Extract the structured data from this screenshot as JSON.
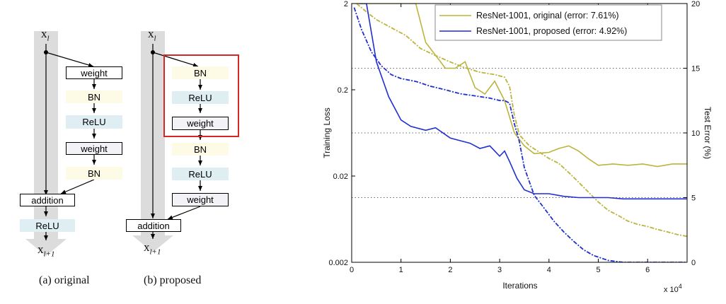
{
  "diagram": {
    "input_label": "x",
    "input_sub": "l",
    "output_label": "x",
    "output_sub": "l+1",
    "original": {
      "caption": "(a) original",
      "blocks": [
        "weight",
        "BN",
        "ReLU",
        "weight",
        "BN"
      ],
      "addition": "addition",
      "after": "ReLU"
    },
    "proposed": {
      "caption": "(b) proposed",
      "blocks": [
        "BN",
        "ReLU",
        "weight",
        "BN",
        "ReLU",
        "weight"
      ],
      "addition": "addition"
    },
    "colors": {
      "shortcut": "#dcdcdc",
      "bn": "#fdfae6",
      "relu": "#dfeef3",
      "highlight": "#d62728"
    }
  },
  "chart_data": {
    "type": "line",
    "x_label": "Iterations",
    "x_multiplier": "x 10",
    "x_multiplier_exp": "4",
    "x_ticks": [
      "0",
      "1",
      "2",
      "3",
      "4",
      "5",
      "6"
    ],
    "x_range": [
      0,
      6.8
    ],
    "y_left_label": "Training Loss",
    "y_left_scale": "log",
    "y_left_range": [
      0.002,
      2
    ],
    "y_left_ticks": [
      "2",
      "0.2",
      "0.02",
      "0.002"
    ],
    "y_right_label": "Test Error (%)",
    "y_right_range": [
      0,
      20
    ],
    "y_right_ticks": [
      "0",
      "5",
      "10",
      "15",
      "20"
    ],
    "grid": "dotted horizontal at 5, 10, 15 (%)",
    "legend_position": "top-right",
    "series": [
      {
        "name": "ResNet-1001, original (error: 7.61%)",
        "color": "#bcb43c",
        "test_error": {
          "x": [
            0.15,
            0.4,
            0.7,
            1.0,
            1.3,
            1.5,
            1.7,
            1.9,
            2.1,
            2.3,
            2.5,
            2.7,
            2.9,
            3.1,
            3.3,
            3.5,
            3.7,
            4.0,
            4.2,
            4.4,
            4.6,
            4.8,
            5.0,
            5.3,
            5.6,
            5.9,
            6.2,
            6.5,
            6.8
          ],
          "y": [
            20,
            20,
            20,
            20,
            20,
            17,
            16,
            15,
            15,
            15.5,
            13.5,
            13,
            14,
            12.5,
            10,
            9,
            8.4,
            8.5,
            8.8,
            9.0,
            8.6,
            8.0,
            7.5,
            7.6,
            7.5,
            7.6,
            7.4,
            7.6,
            7.6
          ]
        },
        "train_loss": {
          "x": [
            0.1,
            0.3,
            0.5,
            0.8,
            1.1,
            1.4,
            1.7,
            2.0,
            2.3,
            2.6,
            2.9,
            3.1,
            3.2,
            3.3,
            3.4,
            3.6,
            3.8,
            4.0,
            4.2,
            4.4,
            4.6,
            4.8,
            5.0,
            5.2,
            5.4,
            5.6,
            5.8,
            6.0,
            6.2,
            6.4,
            6.6,
            6.8
          ],
          "y": [
            2,
            1.6,
            1.3,
            1.05,
            0.85,
            0.6,
            0.5,
            0.42,
            0.36,
            0.32,
            0.3,
            0.28,
            0.22,
            0.1,
            0.06,
            0.045,
            0.038,
            0.032,
            0.028,
            0.022,
            0.017,
            0.013,
            0.01,
            0.008,
            0.007,
            0.006,
            0.0055,
            0.0052,
            0.0048,
            0.0045,
            0.0042,
            0.004
          ]
        }
      },
      {
        "name": "ResNet-1001, proposed (error: 4.92%)",
        "color": "#1f2fd0",
        "test_error": {
          "x": [
            0.15,
            0.3,
            0.5,
            0.75,
            1.0,
            1.2,
            1.5,
            1.7,
            2.0,
            2.2,
            2.4,
            2.6,
            2.8,
            3.0,
            3.1,
            3.2,
            3.35,
            3.5,
            3.7,
            4.0,
            4.3,
            4.6,
            4.9,
            5.2,
            5.5,
            5.8,
            6.1,
            6.4,
            6.8
          ],
          "y": [
            20,
            20,
            15.5,
            12.8,
            11,
            10.5,
            10.2,
            10.4,
            9.6,
            9.4,
            9.2,
            8.8,
            9.0,
            8.2,
            8.6,
            7.8,
            6.5,
            5.6,
            5.3,
            5.3,
            5.1,
            5.0,
            5.0,
            5.0,
            4.9,
            4.9,
            4.9,
            4.9,
            4.9
          ]
        },
        "train_loss": {
          "x": [
            0.05,
            0.2,
            0.4,
            0.6,
            0.8,
            1.0,
            1.3,
            1.6,
            1.9,
            2.2,
            2.5,
            2.8,
            3.0,
            3.1,
            3.2,
            3.3,
            3.4,
            3.5,
            3.7,
            3.9,
            4.1,
            4.3,
            4.5,
            4.7,
            4.9,
            5.2,
            5.5,
            5.8,
            6.1,
            6.4,
            6.8
          ],
          "y": [
            1.8,
            1.0,
            0.55,
            0.38,
            0.3,
            0.27,
            0.25,
            0.22,
            0.2,
            0.18,
            0.17,
            0.16,
            0.15,
            0.15,
            0.14,
            0.08,
            0.05,
            0.025,
            0.012,
            0.0085,
            0.006,
            0.0045,
            0.0035,
            0.0028,
            0.0024,
            0.0021,
            0.002,
            0.002,
            0.002,
            0.002,
            0.002
          ]
        }
      }
    ]
  }
}
